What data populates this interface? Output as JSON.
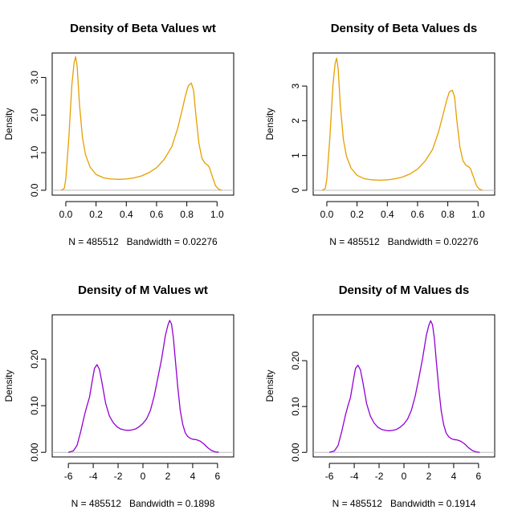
{
  "chart_data": [
    {
      "type": "line",
      "title": "Density of Beta Values wt",
      "xlabel": "N = 485512   Bandwidth = 0.02276",
      "ylabel": "Density",
      "xlim": [
        -0.09,
        1.11
      ],
      "ylim": [
        -0.13,
        3.65
      ],
      "xticks": [
        0.0,
        0.2,
        0.4,
        0.6,
        0.8,
        1.0
      ],
      "xtick_labels": [
        "0.0",
        "0.2",
        "0.4",
        "0.6",
        "0.8",
        "1.0"
      ],
      "yticks": [
        0.0,
        1.0,
        2.0,
        3.0
      ],
      "ytick_labels": [
        "0.0",
        "1.0",
        "2.0",
        "3.0"
      ],
      "baseline": 0,
      "color": "#E69F00",
      "grid": false,
      "series": [
        {
          "x": [
            -0.03,
            -0.01,
            0.0,
            0.02,
            0.04,
            0.055,
            0.065,
            0.075,
            0.09,
            0.11,
            0.13,
            0.16,
            0.2,
            0.25,
            0.3,
            0.35,
            0.4,
            0.45,
            0.5,
            0.55,
            0.6,
            0.65,
            0.7,
            0.74,
            0.77,
            0.79,
            0.81,
            0.83,
            0.845,
            0.86,
            0.88,
            0.9,
            0.92,
            0.94,
            0.95,
            0.97,
            0.99,
            1.01,
            1.03
          ],
          "y": [
            0.0,
            0.05,
            0.3,
            1.4,
            2.8,
            3.4,
            3.55,
            3.3,
            2.3,
            1.4,
            0.95,
            0.62,
            0.42,
            0.33,
            0.3,
            0.29,
            0.3,
            0.33,
            0.38,
            0.47,
            0.6,
            0.82,
            1.15,
            1.65,
            2.15,
            2.5,
            2.78,
            2.85,
            2.65,
            2.0,
            1.25,
            0.85,
            0.72,
            0.66,
            0.6,
            0.35,
            0.12,
            0.03,
            0.0
          ]
        }
      ]
    },
    {
      "type": "line",
      "title": "Density of Beta Values ds",
      "xlabel": "N = 485512   Bandwidth = 0.02276",
      "ylabel": "Density",
      "xlim": [
        -0.09,
        1.11
      ],
      "ylim": [
        -0.14,
        3.95
      ],
      "xticks": [
        0.0,
        0.2,
        0.4,
        0.6,
        0.8,
        1.0
      ],
      "xtick_labels": [
        "0.0",
        "0.2",
        "0.4",
        "0.6",
        "0.8",
        "1.0"
      ],
      "yticks": [
        0,
        1,
        2,
        3
      ],
      "ytick_labels": [
        "0",
        "1",
        "2",
        "3"
      ],
      "baseline": 0,
      "color": "#E69F00",
      "grid": false,
      "series": [
        {
          "x": [
            -0.03,
            -0.01,
            0.0,
            0.02,
            0.04,
            0.055,
            0.065,
            0.075,
            0.09,
            0.11,
            0.13,
            0.16,
            0.2,
            0.25,
            0.3,
            0.35,
            0.4,
            0.45,
            0.5,
            0.55,
            0.6,
            0.65,
            0.7,
            0.74,
            0.77,
            0.79,
            0.81,
            0.83,
            0.845,
            0.86,
            0.88,
            0.9,
            0.92,
            0.94,
            0.95,
            0.97,
            0.99,
            1.01,
            1.03
          ],
          "y": [
            0.0,
            0.05,
            0.32,
            1.5,
            3.0,
            3.65,
            3.8,
            3.5,
            2.4,
            1.45,
            0.98,
            0.64,
            0.43,
            0.33,
            0.3,
            0.29,
            0.3,
            0.33,
            0.38,
            0.47,
            0.61,
            0.84,
            1.18,
            1.7,
            2.2,
            2.55,
            2.83,
            2.88,
            2.68,
            2.0,
            1.25,
            0.85,
            0.72,
            0.67,
            0.62,
            0.38,
            0.13,
            0.03,
            0.0
          ]
        }
      ]
    },
    {
      "type": "line",
      "title": "Density of M Values wt",
      "xlabel": "N = 485512   Bandwidth = 0.1898",
      "ylabel": "Density",
      "xlim": [
        -7.3,
        7.3
      ],
      "ylim": [
        -0.01,
        0.295
      ],
      "xticks": [
        -6,
        -4,
        -2,
        0,
        2,
        4,
        6
      ],
      "xtick_labels": [
        "-6",
        "-4",
        "-2",
        "0",
        "2",
        "4",
        "6"
      ],
      "yticks": [
        0.0,
        0.1,
        0.2
      ],
      "ytick_labels": [
        "0.00",
        "0.10",
        "0.20"
      ],
      "baseline": 0,
      "color": "#9400D3",
      "grid": false,
      "series": [
        {
          "x": [
            -6.0,
            -5.6,
            -5.3,
            -5.0,
            -4.7,
            -4.5,
            -4.3,
            -4.1,
            -3.9,
            -3.7,
            -3.5,
            -3.3,
            -3.0,
            -2.7,
            -2.4,
            -2.1,
            -1.8,
            -1.5,
            -1.2,
            -0.9,
            -0.6,
            -0.3,
            0.0,
            0.3,
            0.6,
            0.9,
            1.2,
            1.5,
            1.8,
            2.0,
            2.15,
            2.3,
            2.45,
            2.6,
            2.8,
            3.0,
            3.2,
            3.4,
            3.6,
            3.8,
            4.0,
            4.3,
            4.6,
            4.9,
            5.2,
            5.5,
            5.8,
            6.1
          ],
          "y": [
            0.0,
            0.003,
            0.015,
            0.045,
            0.08,
            0.1,
            0.118,
            0.15,
            0.18,
            0.188,
            0.178,
            0.15,
            0.105,
            0.078,
            0.064,
            0.055,
            0.05,
            0.048,
            0.047,
            0.048,
            0.05,
            0.055,
            0.062,
            0.072,
            0.09,
            0.12,
            0.16,
            0.2,
            0.25,
            0.272,
            0.283,
            0.275,
            0.245,
            0.2,
            0.14,
            0.09,
            0.06,
            0.042,
            0.034,
            0.03,
            0.028,
            0.027,
            0.024,
            0.018,
            0.01,
            0.004,
            0.001,
            0.0
          ]
        }
      ]
    },
    {
      "type": "line",
      "title": "Density of M Values ds",
      "xlabel": "N = 485512   Bandwidth = 0.1914",
      "ylabel": "Density",
      "xlim": [
        -7.3,
        7.3
      ],
      "ylim": [
        -0.01,
        0.3
      ],
      "xticks": [
        -6,
        -4,
        -2,
        0,
        2,
        4,
        6
      ],
      "xtick_labels": [
        "-6",
        "-4",
        "-2",
        "0",
        "2",
        "4",
        "6"
      ],
      "yticks": [
        0.0,
        0.1,
        0.2
      ],
      "ytick_labels": [
        "0.00",
        "0.10",
        "0.20"
      ],
      "baseline": 0,
      "color": "#9400D3",
      "grid": false,
      "series": [
        {
          "x": [
            -6.0,
            -5.6,
            -5.3,
            -5.0,
            -4.7,
            -4.5,
            -4.3,
            -4.1,
            -3.9,
            -3.7,
            -3.5,
            -3.3,
            -3.0,
            -2.7,
            -2.4,
            -2.1,
            -1.8,
            -1.5,
            -1.2,
            -0.9,
            -0.6,
            -0.3,
            0.0,
            0.3,
            0.6,
            0.9,
            1.2,
            1.5,
            1.8,
            2.0,
            2.15,
            2.3,
            2.45,
            2.6,
            2.8,
            3.0,
            3.2,
            3.4,
            3.6,
            3.8,
            4.0,
            4.3,
            4.6,
            4.9,
            5.2,
            5.5,
            5.8,
            6.1
          ],
          "y": [
            0.0,
            0.003,
            0.015,
            0.046,
            0.082,
            0.102,
            0.12,
            0.152,
            0.183,
            0.19,
            0.18,
            0.152,
            0.106,
            0.079,
            0.064,
            0.055,
            0.05,
            0.048,
            0.047,
            0.048,
            0.05,
            0.055,
            0.062,
            0.073,
            0.092,
            0.122,
            0.162,
            0.205,
            0.255,
            0.277,
            0.287,
            0.278,
            0.248,
            0.2,
            0.14,
            0.09,
            0.06,
            0.042,
            0.034,
            0.03,
            0.028,
            0.027,
            0.024,
            0.018,
            0.01,
            0.004,
            0.001,
            0.0
          ]
        }
      ]
    }
  ]
}
